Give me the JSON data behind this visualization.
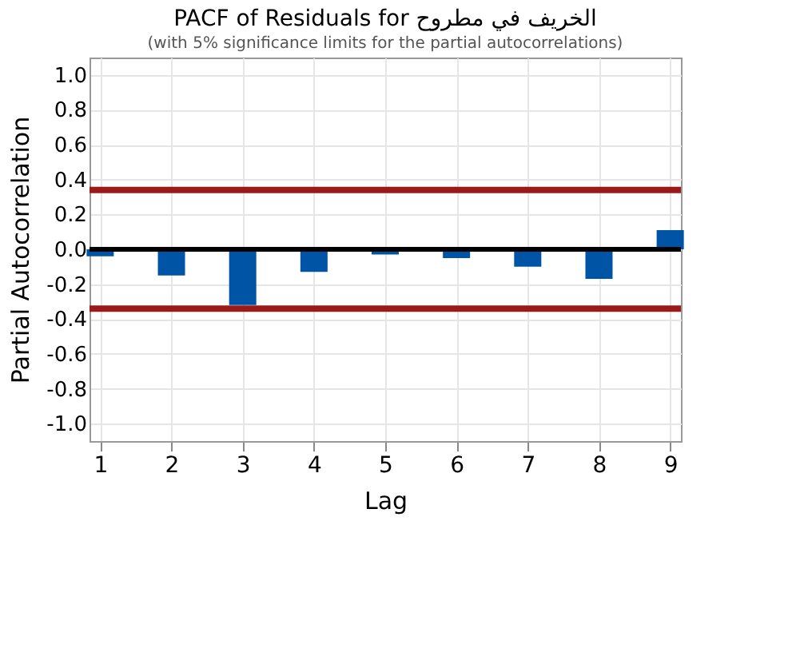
{
  "chart_data": {
    "type": "bar",
    "title": "PACF of Residuals for الخريف في مطروح",
    "subtitle": "(with 5% significance limits for the partial autocorrelations)",
    "xlabel": "Lag",
    "ylabel": "Partial Autocorrelation",
    "x": [
      1,
      2,
      3,
      4,
      5,
      6,
      7,
      8,
      9
    ],
    "values": [
      -0.04,
      -0.15,
      -0.32,
      -0.13,
      -0.03,
      -0.05,
      -0.1,
      -0.17,
      0.11
    ],
    "color": "#0054a6",
    "xlim": [
      0.85,
      9.15
    ],
    "xticks": [
      1,
      2,
      3,
      4,
      5,
      6,
      7,
      8,
      9
    ],
    "ylim": [
      -1.1,
      1.1
    ],
    "yticks": [
      {
        "value": -1.0,
        "label": "-1.0"
      },
      {
        "value": -0.8,
        "label": "-0.8"
      },
      {
        "value": -0.6,
        "label": "-0.6"
      },
      {
        "value": -0.4,
        "label": "-0.4"
      },
      {
        "value": -0.2,
        "label": "-0.2"
      },
      {
        "value": 0.0,
        "label": "0.0"
      },
      {
        "value": 0.2,
        "label": "0.2"
      },
      {
        "value": 0.4,
        "label": "0.4"
      },
      {
        "value": 0.6,
        "label": "0.6"
      },
      {
        "value": 0.8,
        "label": "0.8"
      },
      {
        "value": 1.0,
        "label": "1.0"
      }
    ],
    "ref_lines": [
      {
        "axis": "y",
        "value": 0,
        "color": "#000000"
      },
      {
        "axis": "y",
        "value": 0.34,
        "color": "#9b1b1b"
      },
      {
        "axis": "y",
        "value": -0.34,
        "color": "#9b1b1b"
      }
    ],
    "grid": true
  }
}
